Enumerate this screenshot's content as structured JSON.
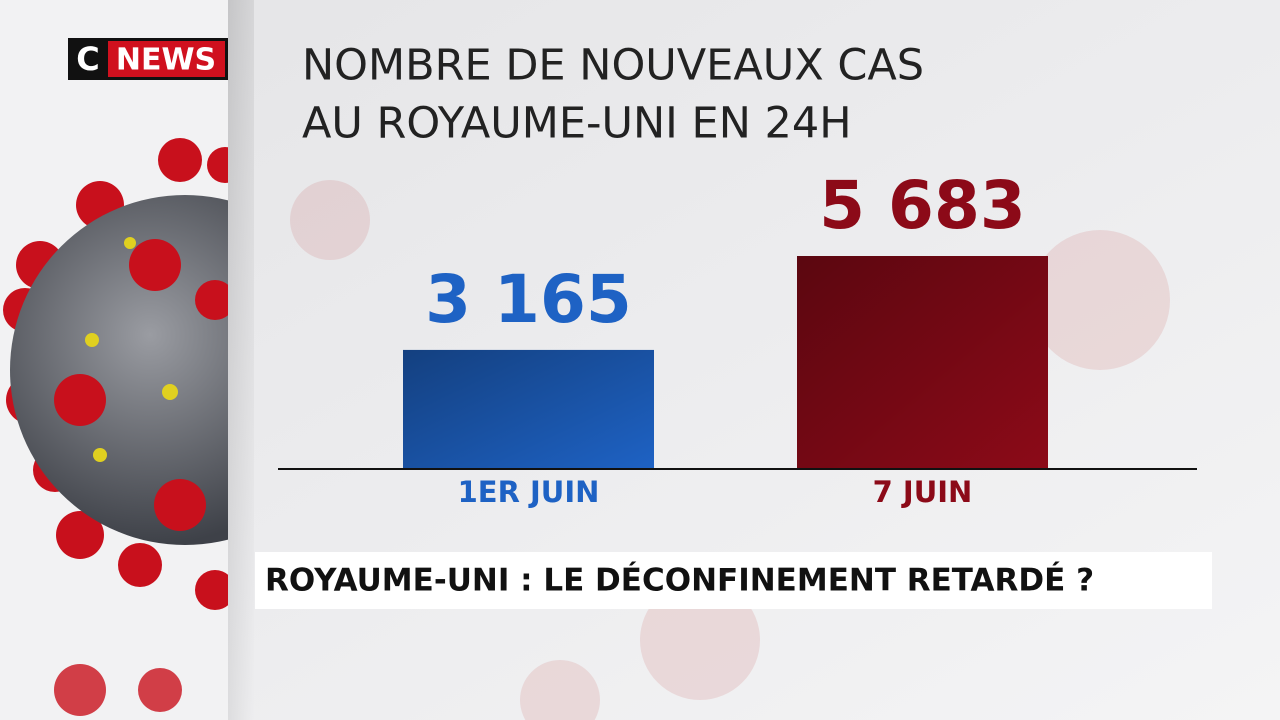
{
  "logo": {
    "letter": "C",
    "word": "NEWS"
  },
  "chart_data": {
    "type": "bar",
    "title": [
      "NOMBRE DE NOUVEAUX CAS",
      "AU ROYAUME-UNI EN 24H"
    ],
    "categories": [
      "1ER JUIN",
      "7 JUIN"
    ],
    "values": [
      3165,
      5683
    ],
    "value_labels": [
      "3 165",
      "5 683"
    ],
    "colors": [
      "#1e62c4",
      "#8c0a18"
    ]
  },
  "banner": "ROYAUME-UNI : LE DÉCONFINEMENT RETARDÉ ?"
}
